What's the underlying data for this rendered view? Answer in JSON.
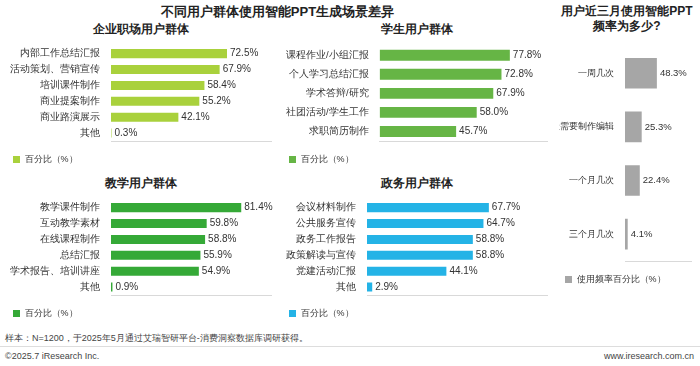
{
  "title": "不同用户群体使用智能PPT生成场景差异",
  "chart_data": [
    {
      "type": "bar",
      "orientation": "horizontal",
      "title": "企业职场用户群体",
      "categories": [
        "内部工作总结汇报",
        "活动策划、营销宣传",
        "培训课件制作",
        "商业提案制作",
        "商业路演展示",
        "其他"
      ],
      "series": [
        {
          "name": "百分比（%）",
          "color": "#a9d13c",
          "values": [
            72.5,
            67.9,
            58.4,
            55.2,
            42.1,
            0.3
          ],
          "value_labels": [
            "72.5%",
            "67.9%",
            "58.4%",
            "55.2%",
            "42.1%",
            "0.3%"
          ]
        }
      ],
      "xlim": [
        0,
        100
      ],
      "grid": false,
      "legend": "bottom",
      "data_labels": true,
      "tick_labels": "y"
    },
    {
      "type": "bar",
      "orientation": "horizontal",
      "title": "学生用户群体",
      "categories": [
        "课程作业/小组汇报",
        "个人学习总结汇报",
        "学术答辩/研究",
        "社团活动/学生工作",
        "求职简历制作"
      ],
      "series": [
        {
          "name": "百分比（%）",
          "color": "#66b545",
          "values": [
            77.8,
            72.8,
            67.9,
            58.0,
            45.7
          ],
          "value_labels": [
            "77.8%",
            "72.8%",
            "67.9%",
            "58.0%",
            "45.7%"
          ]
        }
      ],
      "xlim": [
        0,
        100
      ],
      "grid": false,
      "legend": "bottom",
      "data_labels": true,
      "tick_labels": "y"
    },
    {
      "type": "bar",
      "orientation": "horizontal",
      "title": "教学用户群体",
      "categories": [
        "教学课件制作",
        "互动教学素材",
        "在线课程制作",
        "总结汇报",
        "学术报告、培训讲座",
        "其他"
      ],
      "series": [
        {
          "name": "百分比（%）",
          "color": "#35a937",
          "values": [
            81.4,
            59.8,
            58.8,
            55.9,
            54.9,
            0.9
          ],
          "value_labels": [
            "81.4%",
            "59.8%",
            "58.8%",
            "55.9%",
            "54.9%",
            "0.9%"
          ]
        }
      ],
      "xlim": [
        0,
        100
      ],
      "grid": false,
      "legend": "bottom",
      "data_labels": true,
      "tick_labels": "y"
    },
    {
      "type": "bar",
      "orientation": "horizontal",
      "title": "政务用户群体",
      "categories": [
        "会议材料制作",
        "公共服务宣传",
        "政务工作报告",
        "政策解读与宣传",
        "党建活动汇报",
        "其他"
      ],
      "series": [
        {
          "name": "百分比（%）",
          "color": "#24b3e6",
          "values": [
            67.7,
            64.7,
            58.8,
            58.8,
            44.1,
            2.9
          ],
          "value_labels": [
            "67.7%",
            "64.7%",
            "58.8%",
            "58.8%",
            "44.1%",
            "2.9%"
          ]
        }
      ],
      "xlim": [
        0,
        100
      ],
      "grid": false,
      "legend": "bottom",
      "data_labels": true,
      "tick_labels": "y"
    },
    {
      "type": "bar",
      "orientation": "horizontal",
      "title": "用户近三月使用智能PPT频率为多少?",
      "categories": [
        "一周几次",
        "每天需要制作编辑",
        "一个月几次",
        "三个月几次"
      ],
      "series": [
        {
          "name": "使用频率百分比（%）",
          "color": "#a6a6a6",
          "values": [
            48.3,
            25.3,
            22.4,
            4.1
          ],
          "value_labels": [
            "48.3%",
            "25.3%",
            "22.4%",
            "4.1%"
          ]
        }
      ],
      "xlim": [
        0,
        100
      ],
      "grid": false,
      "legend": "bottom",
      "data_labels": true,
      "tick_labels": "y"
    }
  ],
  "note": "样本：N=1200，于2025年5月通过艾瑞智研平台-消费洞察数据库调研获得。",
  "copyright": "©2025.7 iResearch Inc.",
  "website": "www.iresearch.com.cn"
}
